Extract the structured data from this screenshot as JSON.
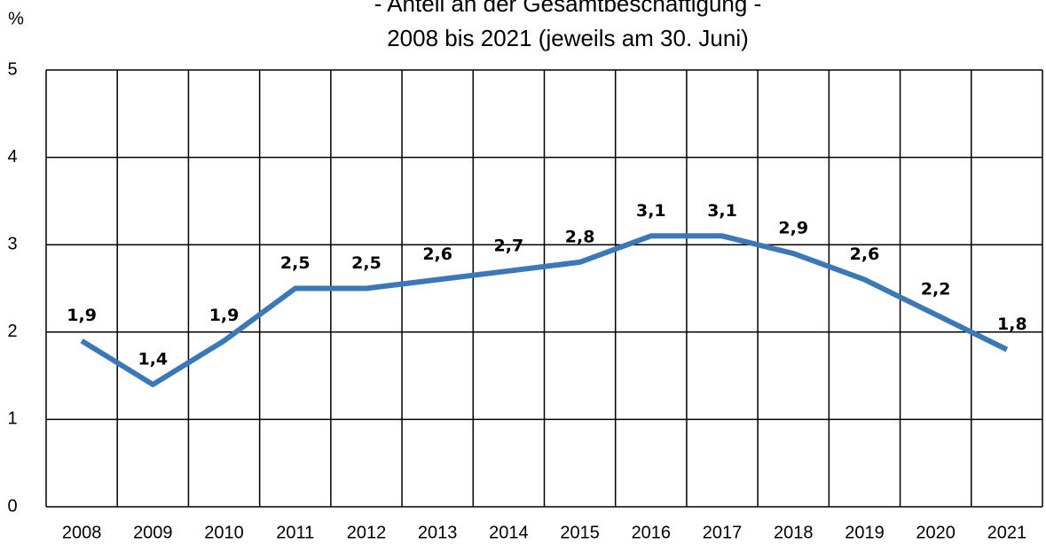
{
  "chart_data": {
    "type": "line",
    "title": "- Anteil an der Gesamtbeschäftigung -",
    "subtitle": "2008 bis 2021 (jeweils am 30. Juni)",
    "y_label": "%",
    "categories": [
      "2008",
      "2009",
      "2010",
      "2011",
      "2012",
      "2013",
      "2014",
      "2015",
      "2016",
      "2017",
      "2018",
      "2019",
      "2020",
      "2021"
    ],
    "series": [
      {
        "name": "Anteil",
        "color": "#3b78b8",
        "values": [
          1.9,
          1.4,
          1.9,
          2.5,
          2.5,
          2.6,
          2.7,
          2.8,
          3.1,
          3.1,
          2.9,
          2.6,
          2.2,
          1.8
        ],
        "value_labels": [
          "1,9",
          "1,4",
          "1,9",
          "2,5",
          "2,5",
          "2,6",
          "2,7",
          "2,8",
          "3,1",
          "3,1",
          "2,9",
          "2,6",
          "2,2",
          "1,8"
        ]
      }
    ],
    "ylim": [
      0,
      5
    ],
    "yticks": [
      0,
      1,
      2,
      3,
      4,
      5
    ],
    "grid": true
  }
}
